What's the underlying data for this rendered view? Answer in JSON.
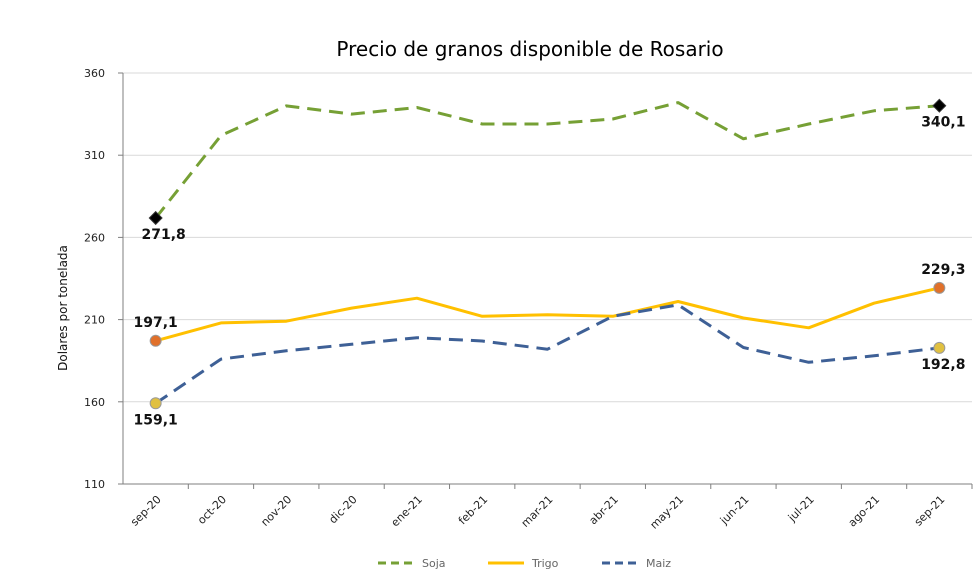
{
  "chart_data": {
    "type": "line",
    "title": "Precio de granos disponible de Rosario",
    "ylabel": "Dolares por tonelada",
    "ylim": [
      110,
      360
    ],
    "yticks": [
      110,
      160,
      210,
      260,
      310,
      360
    ],
    "grid": true,
    "legend_position": "bottom",
    "categories": [
      "sep-20",
      "oct-20",
      "nov-20",
      "dic-20",
      "ene-21",
      "feb-21",
      "mar-21",
      "abr-21",
      "may-21",
      "jun-21",
      "jul-21",
      "ago-21",
      "sep-21"
    ],
    "series": [
      {
        "name": "Soja",
        "legend_label": "Soja",
        "color": "#76a035",
        "dash": "dashed",
        "marker_color": "#000000",
        "values": [
          271.8,
          322,
          340,
          335,
          339,
          329,
          329,
          332,
          342,
          320,
          329,
          337,
          340.1
        ],
        "labels": [
          {
            "index": 0,
            "text": "271,8"
          },
          {
            "index": 12,
            "text": "340,1"
          }
        ]
      },
      {
        "name": "Trigo",
        "legend_label": "Trigo",
        "color": "#ffc000",
        "dash": "solid",
        "marker_color": "#e0702a",
        "values": [
          197.1,
          208,
          209,
          217,
          223,
          212,
          213,
          212,
          221,
          211,
          205,
          220,
          229.3
        ],
        "labels": [
          {
            "index": 0,
            "text": "197,1"
          },
          {
            "index": 12,
            "text": "229,3"
          }
        ]
      },
      {
        "name": "Maíz",
        "legend_label": "Maiz",
        "color": "#3e6096",
        "dash": "dashed",
        "marker_color": "#e0c040",
        "values": [
          159.1,
          186,
          191,
          195,
          199,
          197,
          192,
          212,
          219,
          193,
          184,
          188,
          192.8
        ],
        "labels": [
          {
            "index": 0,
            "text": "159,1"
          },
          {
            "index": 12,
            "text": "192,8"
          }
        ]
      }
    ]
  }
}
